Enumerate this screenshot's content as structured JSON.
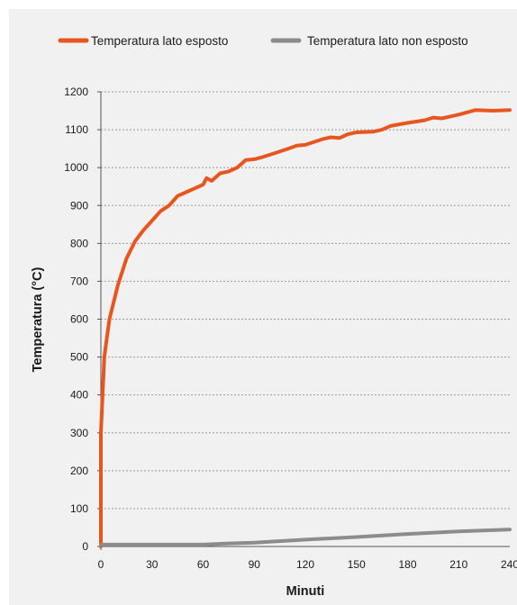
{
  "chart_data": {
    "type": "line",
    "title": "",
    "xlabel": "Minuti",
    "ylabel": "Temperatura (°C)",
    "xlim": [
      0,
      240
    ],
    "ylim": [
      0,
      1200
    ],
    "x_ticks": [
      0,
      30,
      60,
      90,
      120,
      150,
      180,
      210,
      240
    ],
    "y_ticks": [
      0,
      100,
      200,
      300,
      400,
      500,
      600,
      700,
      800,
      900,
      1000,
      1100,
      1200
    ],
    "grid": true,
    "legend_position": "top",
    "series": [
      {
        "name": "Temperatura lato esposto",
        "color": "#e8561f",
        "points": [
          [
            0,
            0
          ],
          [
            0,
            300
          ],
          [
            2,
            500
          ],
          [
            5,
            600
          ],
          [
            10,
            690
          ],
          [
            15,
            760
          ],
          [
            20,
            805
          ],
          [
            25,
            835
          ],
          [
            30,
            860
          ],
          [
            35,
            885
          ],
          [
            40,
            900
          ],
          [
            45,
            925
          ],
          [
            50,
            935
          ],
          [
            55,
            945
          ],
          [
            60,
            955
          ],
          [
            62,
            972
          ],
          [
            65,
            965
          ],
          [
            70,
            985
          ],
          [
            75,
            990
          ],
          [
            80,
            1000
          ],
          [
            85,
            1020
          ],
          [
            90,
            1022
          ],
          [
            95,
            1028
          ],
          [
            100,
            1035
          ],
          [
            110,
            1050
          ],
          [
            115,
            1058
          ],
          [
            120,
            1060
          ],
          [
            130,
            1075
          ],
          [
            135,
            1080
          ],
          [
            140,
            1078
          ],
          [
            145,
            1088
          ],
          [
            150,
            1093
          ],
          [
            160,
            1095
          ],
          [
            165,
            1100
          ],
          [
            170,
            1110
          ],
          [
            180,
            1118
          ],
          [
            190,
            1125
          ],
          [
            195,
            1132
          ],
          [
            200,
            1130
          ],
          [
            205,
            1135
          ],
          [
            210,
            1140
          ],
          [
            220,
            1152
          ],
          [
            230,
            1150
          ],
          [
            240,
            1152
          ]
        ]
      },
      {
        "name": "Temperatura lato non esposto",
        "color": "#8c8c8c",
        "points": [
          [
            0,
            5
          ],
          [
            60,
            5
          ],
          [
            75,
            8
          ],
          [
            90,
            10
          ],
          [
            120,
            18
          ],
          [
            150,
            25
          ],
          [
            180,
            33
          ],
          [
            210,
            40
          ],
          [
            240,
            45
          ]
        ]
      }
    ]
  }
}
